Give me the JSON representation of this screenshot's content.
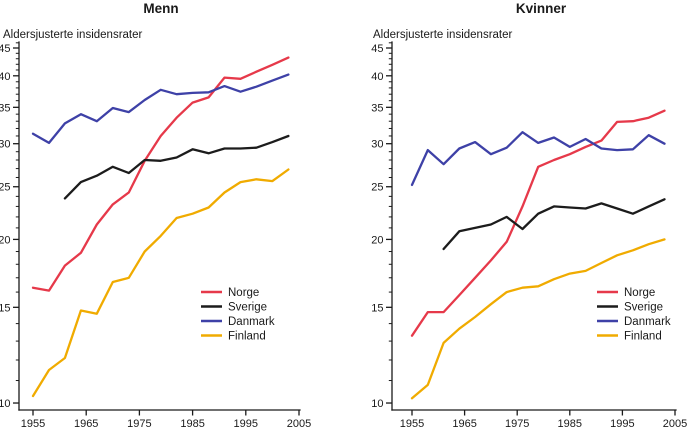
{
  "figure": {
    "background": "#ffffff",
    "text_color": "#1a1a1a"
  },
  "chart_data": [
    {
      "id": "menn",
      "type": "line",
      "title": "Menn",
      "ylabel": "Aldersjusterte insidensrater",
      "xlabel": "",
      "y_scale": "log",
      "ylim": [
        9.7,
        46.5
      ],
      "xlim": [
        1952.4,
        2005.5
      ],
      "y_major_ticks": [
        45,
        40,
        35,
        30,
        25,
        20,
        15,
        10
      ],
      "y_minor_tick_step": 1,
      "x_major_ticks": [
        1955,
        1965,
        1975,
        1985,
        1995,
        2005
      ],
      "grid": false,
      "legend_position": "inside-lower-right",
      "x": [
        1955,
        1958,
        1961,
        1964,
        1967,
        1970,
        1973,
        1976,
        1979,
        1982,
        1985,
        1988,
        1991,
        1994,
        1997,
        2000,
        2003
      ],
      "series": [
        {
          "name": "Norge",
          "color": "#e6394a",
          "values": [
            16.3,
            16.1,
            17.9,
            18.9,
            21.3,
            23.2,
            24.4,
            27.9,
            31.0,
            33.5,
            35.7,
            36.5,
            39.7,
            39.5,
            40.7,
            41.9,
            43.2
          ]
        },
        {
          "name": "Sverige",
          "color": "#1c1c1c",
          "values": [
            null,
            null,
            23.8,
            25.5,
            26.2,
            27.2,
            26.5,
            28.0,
            27.9,
            28.3,
            29.3,
            28.8,
            29.4,
            29.4,
            29.5,
            30.2,
            31.0
          ]
        },
        {
          "name": "Danmark",
          "color": "#3e41a7",
          "values": [
            31.3,
            30.1,
            32.7,
            34.0,
            33.0,
            34.9,
            34.3,
            36.1,
            37.7,
            37.0,
            37.2,
            37.3,
            38.3,
            37.4,
            38.2,
            39.2,
            40.2
          ]
        },
        {
          "name": "Finland",
          "color": "#f0ab00",
          "values": [
            10.3,
            11.5,
            12.1,
            14.8,
            14.6,
            16.7,
            17.0,
            19.0,
            20.3,
            21.9,
            22.3,
            22.9,
            24.4,
            25.5,
            25.8,
            25.6,
            26.9
          ]
        }
      ]
    },
    {
      "id": "kvinner",
      "type": "line",
      "title": "Kvinner",
      "ylabel": "Aldersjusterte insidensrater",
      "xlabel": "",
      "y_scale": "log",
      "ylim": [
        9.7,
        46.5
      ],
      "xlim": [
        1951.2,
        2005.5
      ],
      "y_major_ticks": [
        45,
        40,
        35,
        30,
        25,
        20,
        15,
        10
      ],
      "y_minor_tick_step": 1,
      "x_major_ticks": [
        1955,
        1965,
        1975,
        1985,
        1995,
        2005
      ],
      "grid": false,
      "legend_position": "inside-lower-right",
      "x": [
        1955,
        1958,
        1961,
        1964,
        1967,
        1970,
        1973,
        1976,
        1979,
        1982,
        1985,
        1988,
        1991,
        1994,
        1997,
        2000,
        2003
      ],
      "series": [
        {
          "name": "Norge",
          "color": "#e6394a",
          "values": [
            13.3,
            14.7,
            14.7,
            15.8,
            17.0,
            18.3,
            19.8,
            23.0,
            27.2,
            28.0,
            28.7,
            29.6,
            30.4,
            32.9,
            33.0,
            33.5,
            34.5
          ]
        },
        {
          "name": "Sverige",
          "color": "#1c1c1c",
          "values": [
            null,
            null,
            19.2,
            20.7,
            21.0,
            21.3,
            22.0,
            20.9,
            22.3,
            23.0,
            22.9,
            22.8,
            23.3,
            22.8,
            22.3,
            23.0,
            23.7
          ]
        },
        {
          "name": "Danmark",
          "color": "#3e41a7",
          "values": [
            25.2,
            29.2,
            27.5,
            29.4,
            30.2,
            28.7,
            29.5,
            31.5,
            30.1,
            30.8,
            29.6,
            30.6,
            29.4,
            29.2,
            29.3,
            31.1,
            30.0
          ]
        },
        {
          "name": "Finland",
          "color": "#f0ab00",
          "values": [
            10.2,
            10.8,
            12.9,
            13.7,
            14.4,
            15.2,
            16.0,
            16.3,
            16.4,
            16.9,
            17.3,
            17.5,
            18.1,
            18.7,
            19.1,
            19.6,
            20.0
          ]
        }
      ]
    }
  ]
}
